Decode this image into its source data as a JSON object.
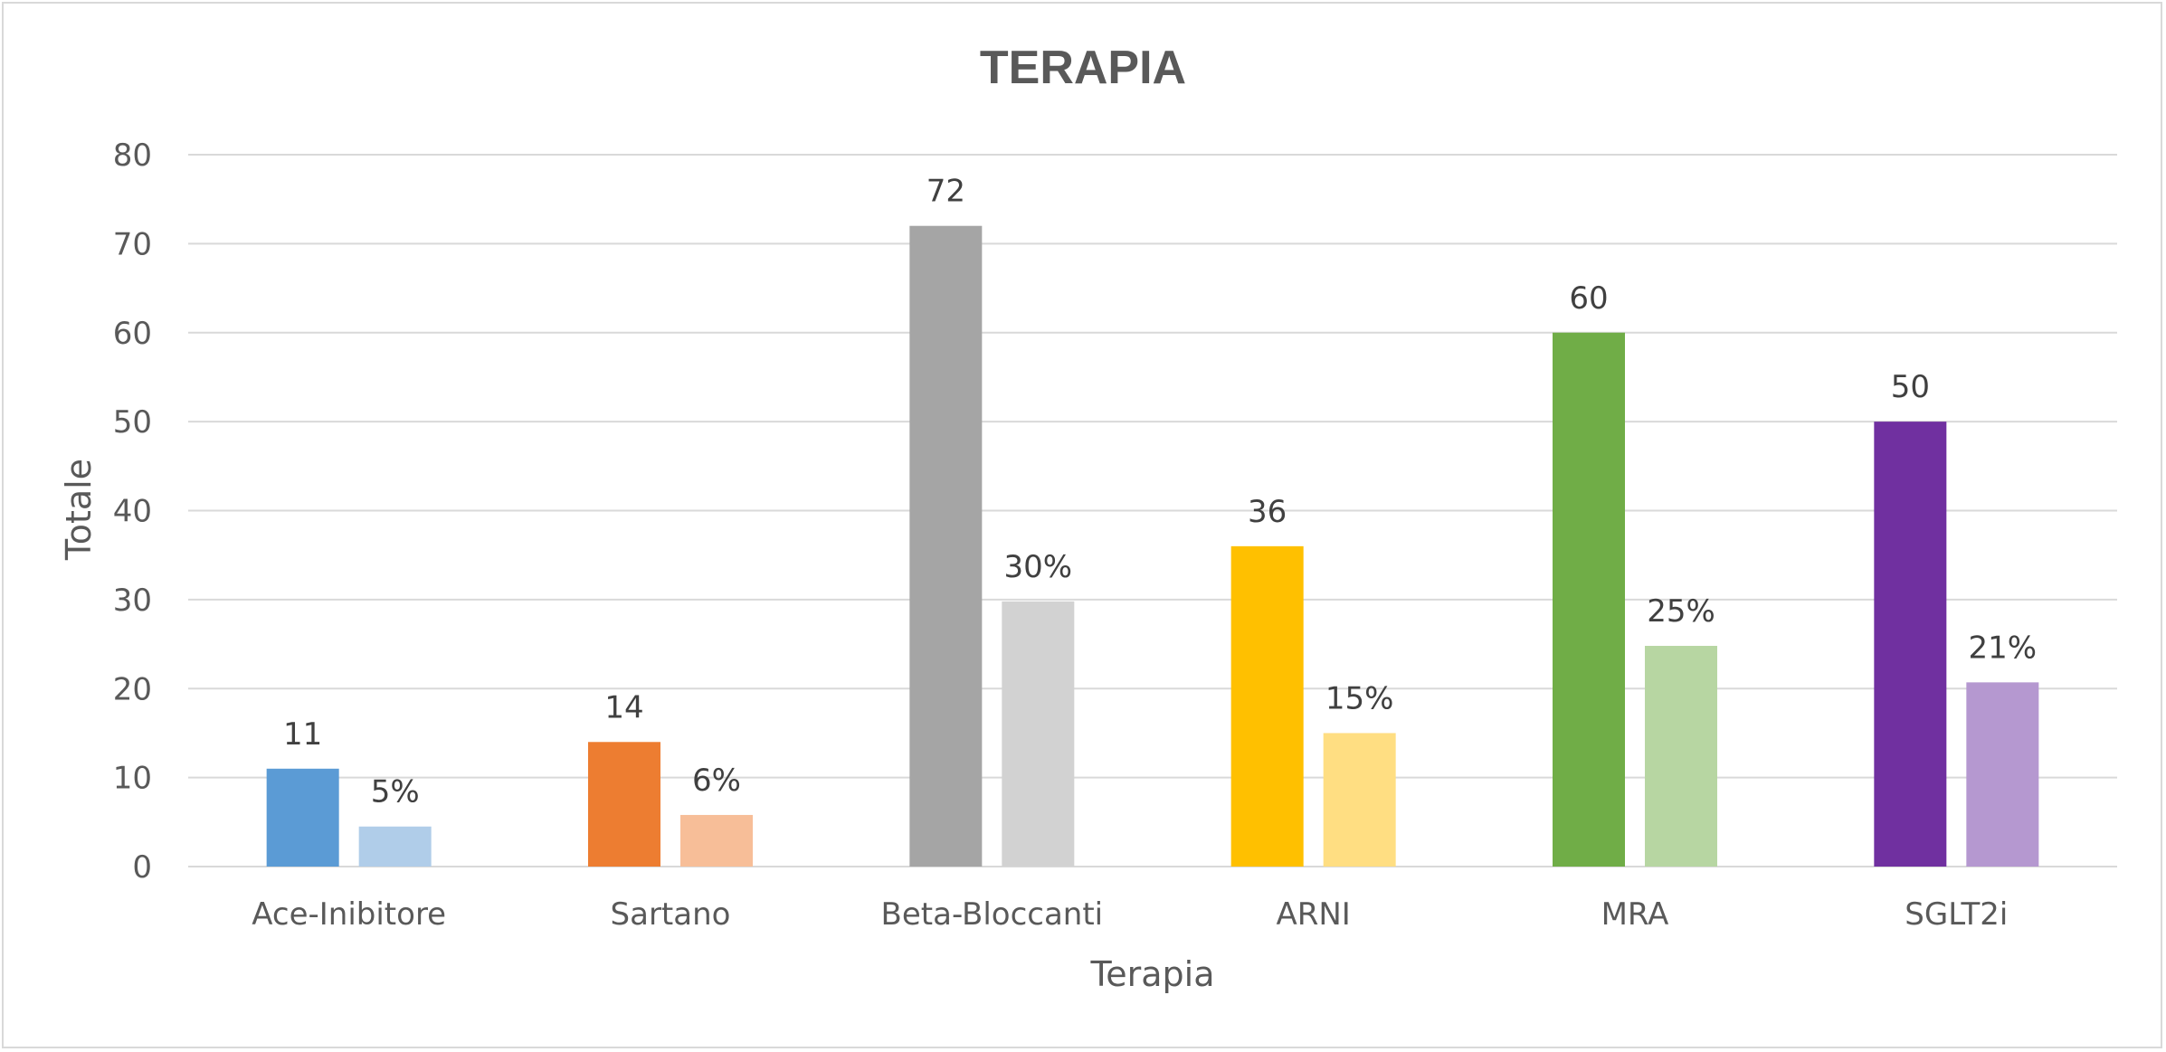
{
  "chart_data": {
    "type": "bar",
    "title": "TERAPIA",
    "xlabel": "Terapia",
    "ylabel": "Totale",
    "ylim": [
      0,
      80
    ],
    "yticks": [
      0,
      10,
      20,
      30,
      40,
      50,
      60,
      70,
      80
    ],
    "grid": true,
    "legend": "none",
    "categories": [
      "Ace-Inibitore",
      "Sartano",
      "Beta-Bloccanti",
      "ARNI",
      "MRA",
      "SGLT2i"
    ],
    "series": [
      {
        "values": [
          11,
          14,
          72,
          36,
          60,
          50
        ],
        "labels": [
          "11",
          "14",
          "72",
          "36",
          "60",
          "50"
        ],
        "colors": [
          "#5b9bd5",
          "#ed7d31",
          "#a5a5a5",
          "#ffc000",
          "#70ad47",
          "#7030a0"
        ]
      },
      {
        "values": [
          4.5,
          5.8,
          29.8,
          15,
          24.8,
          20.7
        ],
        "labels": [
          "5%",
          "6%",
          "30%",
          "15%",
          "25%",
          "21%"
        ],
        "colors": [
          "#b0cde9",
          "#f7be98",
          "#d2d2d2",
          "#ffde82",
          "#b7d6a2",
          "#b598d0"
        ]
      }
    ]
  }
}
